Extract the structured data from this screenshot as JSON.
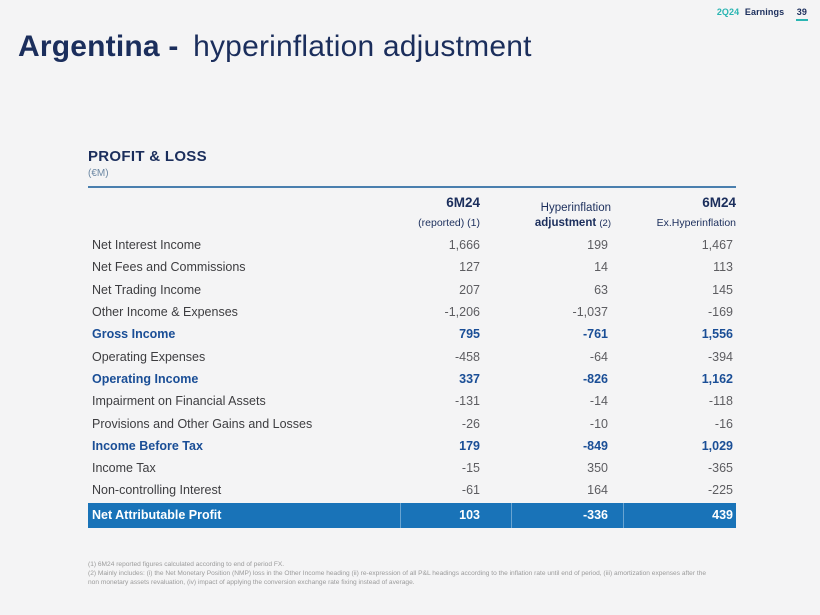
{
  "header": {
    "quarter": "2Q24",
    "earnings": "Earnings",
    "page_number": "39"
  },
  "title": {
    "bold": "Argentina -",
    "regular": "hyperinflation adjustment"
  },
  "section": {
    "title": "PROFIT & LOSS",
    "unit": "(€M)"
  },
  "table": {
    "columns": [
      {
        "line1": "6M24",
        "line2": "(reported) (1)"
      },
      {
        "line1": "Hyperinflation",
        "line2_bold": "adjustment",
        "line2_note": "(2)"
      },
      {
        "line1": "6M24",
        "line2": "Ex.Hyperinflation"
      }
    ],
    "rows": [
      {
        "label": "Net Interest Income",
        "values": [
          "1,666",
          "199",
          "1,467"
        ],
        "style": "normal"
      },
      {
        "label": "Net Fees and Commissions",
        "values": [
          "127",
          "14",
          "113"
        ],
        "style": "normal"
      },
      {
        "label": "Net Trading Income",
        "values": [
          "207",
          "63",
          "145"
        ],
        "style": "normal"
      },
      {
        "label": "Other Income & Expenses",
        "values": [
          "-1,206",
          "-1,037",
          "-169"
        ],
        "style": "normal"
      },
      {
        "label": "Gross Income",
        "values": [
          "795",
          "-761",
          "1,556"
        ],
        "style": "subtotal"
      },
      {
        "label": "Operating Expenses",
        "values": [
          "-458",
          "-64",
          "-394"
        ],
        "style": "normal"
      },
      {
        "label": "Operating Income",
        "values": [
          "337",
          "-826",
          "1,162"
        ],
        "style": "subtotal"
      },
      {
        "label": "Impairment on Financial Assets",
        "values": [
          "-131",
          "-14",
          "-118"
        ],
        "style": "normal"
      },
      {
        "label": "Provisions and Other Gains and Losses",
        "values": [
          "-26",
          "-10",
          "-16"
        ],
        "style": "normal"
      },
      {
        "label": "Income Before Tax",
        "values": [
          "179",
          "-849",
          "1,029"
        ],
        "style": "subtotal"
      },
      {
        "label": "Income Tax",
        "values": [
          "-15",
          "350",
          "-365"
        ],
        "style": "normal"
      },
      {
        "label": "Non-controlling Interest",
        "values": [
          "-61",
          "164",
          "-225"
        ],
        "style": "normal"
      },
      {
        "label": "Net Attributable Profit",
        "values": [
          "103",
          "-336",
          "439"
        ],
        "style": "highlight"
      }
    ]
  },
  "footnotes": [
    "(1) 6M24 reported figures calculated according to end of period FX.",
    "(2) Mainly includes: (i) the Net Monetary Position (NMP) loss in the Other Income heading (ii) re-expression of all P&L headings according to the inflation rate until end of period, (iii) amortization expenses after the non monetary assets revaluation, (iv) impact of applying the conversion exchange rate fixing instead of average."
  ],
  "colors": {
    "background": "#f4f4f5",
    "navy": "#1b2e5c",
    "teal": "#2ab5b2",
    "rule": "#4a7fae",
    "slate": "#6b87a3",
    "label": "#3d3d40",
    "numgray": "#5d5d61",
    "subtotal": "#1a4e96",
    "bar": "#1973b8",
    "footnote": "#9b9b9b"
  }
}
